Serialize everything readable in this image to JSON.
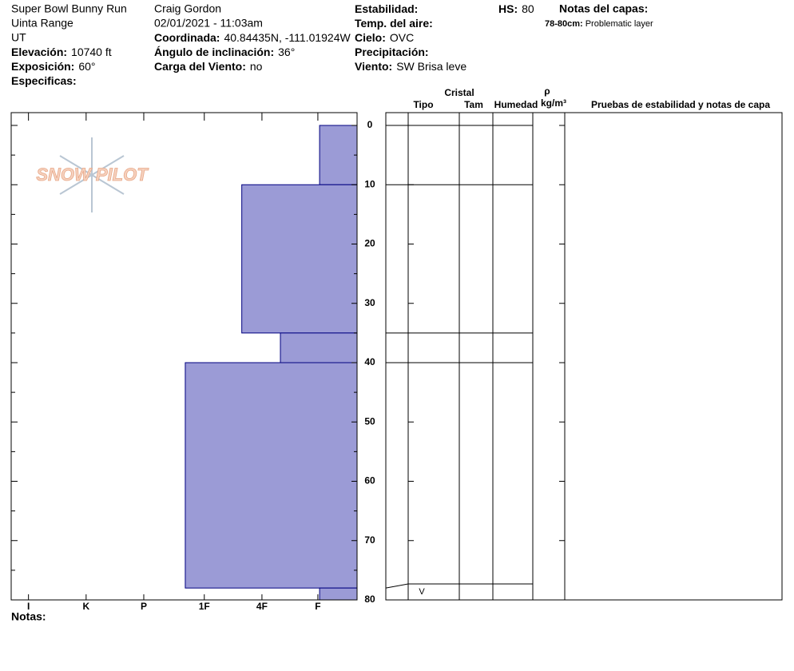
{
  "header": {
    "site": "Super Bowl Bunny Run",
    "range": "Uinta Range",
    "state": "UT",
    "observer": "Craig Gordon",
    "date": "02/01/2021 - 11:03am",
    "fields": [
      {
        "label": "Elevación:",
        "value": "10740 ft"
      },
      {
        "label": "Exposición:",
        "value": "60°"
      },
      {
        "label": "Especificas:"
      },
      {
        "label": "Coordinada:",
        "value": "40.84435N, -111.01924W"
      },
      {
        "label": "Ángulo de inclinación:",
        "value": "36°"
      },
      {
        "label": "Carga del Viento:",
        "value": "no"
      },
      {
        "label": "Estabilidad:"
      },
      {
        "label": "Temp. del aire:"
      },
      {
        "label": "Cielo:",
        "value": "OVC"
      },
      {
        "label": "Precipitación:"
      },
      {
        "label": "Viento:",
        "value": "SW Brisa leve"
      },
      {
        "label": "HS:",
        "value": "80"
      }
    ],
    "layer_notes_title": "Notas del capas:",
    "layer_notes": [
      {
        "label": "78-80cm:",
        "text": "Problematic layer"
      }
    ]
  },
  "logo": "SNOW PILOT",
  "table": {
    "group": "Cristal",
    "columns": [
      "Tipo",
      "Tam",
      "Humedad"
    ],
    "density_symbol": "ρ",
    "density_unit": "kg/m³",
    "tests": "Pruebas de estabilidad y notas de capa"
  },
  "notes_label": "Notas:",
  "chart_data": {
    "type": "profile",
    "color": "#9b9bd6",
    "edge_color": "#000080",
    "xlim": [
      6,
      0
    ],
    "xticks": [
      {
        "value": 5.7,
        "label": "I"
      },
      {
        "value": 4.7,
        "label": "K"
      },
      {
        "value": 3.7,
        "label": "P"
      },
      {
        "value": 2.65,
        "label": "1F"
      },
      {
        "value": 1.65,
        "label": "4F"
      },
      {
        "value": 0.68,
        "label": "F"
      }
    ],
    "ylim": [
      0,
      80
    ],
    "yticks": [
      0,
      10,
      20,
      30,
      40,
      50,
      60,
      70,
      80
    ],
    "yminorticks": [
      5,
      15,
      25,
      35,
      45,
      55,
      65,
      75
    ],
    "layers": [
      {
        "top": 0,
        "bottom": 10,
        "hardness": 0.65
      },
      {
        "top": 10,
        "bottom": 35,
        "hardness": 2.0
      },
      {
        "top": 35,
        "bottom": 40,
        "hardness": 1.33
      },
      {
        "top": 40,
        "bottom": 78,
        "hardness": 2.98
      },
      {
        "top": 78,
        "bottom": 80,
        "hardness": 0.65,
        "grain_type": "V"
      }
    ]
  }
}
